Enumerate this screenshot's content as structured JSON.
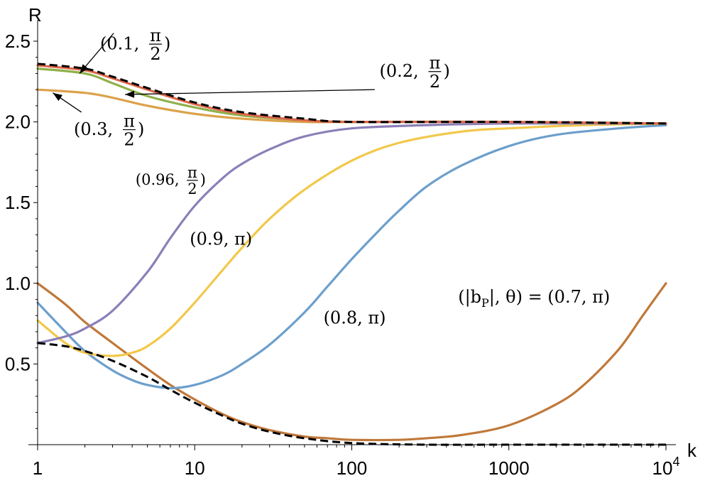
{
  "chart_data": {
    "type": "line",
    "title": "",
    "xlabel": "k",
    "ylabel": "R",
    "xscale": "log",
    "xlim": [
      0.9,
      11000
    ],
    "ylim": [
      0.0,
      2.55
    ],
    "grid": false,
    "x_ticks": [
      {
        "value": 1,
        "label": "1"
      },
      {
        "value": 10,
        "label": "10"
      },
      {
        "value": 100,
        "label": "100"
      },
      {
        "value": 1000,
        "label": "1000"
      },
      {
        "value": 10000,
        "label": "10",
        "sup": "4"
      }
    ],
    "y_ticks": [
      {
        "value": 0.5,
        "label": "0.5"
      },
      {
        "value": 1.0,
        "label": "1.0"
      },
      {
        "value": 1.5,
        "label": "1.5"
      },
      {
        "value": 2.0,
        "label": "2.0"
      },
      {
        "value": 2.5,
        "label": "2.5"
      }
    ],
    "series": [
      {
        "color": "#e0664a",
        "dashed": false,
        "points": [
          [
            1,
            2.35
          ],
          [
            2,
            2.32
          ],
          [
            3,
            2.27
          ],
          [
            5,
            2.2
          ],
          [
            10,
            2.11
          ],
          [
            20,
            2.05
          ],
          [
            50,
            2.01
          ],
          [
            100,
            2.0
          ],
          [
            1000,
            2.0
          ],
          [
            10000,
            1.99
          ]
        ]
      },
      {
        "color": "#8fb04a",
        "dashed": false,
        "points": [
          [
            1,
            2.33
          ],
          [
            2,
            2.3
          ],
          [
            3,
            2.24
          ],
          [
            5,
            2.16
          ],
          [
            10,
            2.09
          ],
          [
            20,
            2.04
          ],
          [
            50,
            2.01
          ],
          [
            100,
            2.0
          ],
          [
            1000,
            2.0
          ],
          [
            10000,
            1.99
          ]
        ]
      },
      {
        "color": "#dca24a",
        "dashed": false,
        "points": [
          [
            1,
            2.2
          ],
          [
            2,
            2.18
          ],
          [
            3,
            2.15
          ],
          [
            5,
            2.1
          ],
          [
            10,
            2.05
          ],
          [
            20,
            2.02
          ],
          [
            50,
            2.0
          ],
          [
            100,
            2.0
          ],
          [
            1000,
            2.0
          ],
          [
            10000,
            1.99
          ]
        ]
      },
      {
        "color": "#8b7fb8",
        "dashed": false,
        "points": [
          [
            1,
            0.63
          ],
          [
            1.5,
            0.67
          ],
          [
            2,
            0.72
          ],
          [
            3,
            0.83
          ],
          [
            5,
            1.07
          ],
          [
            7,
            1.28
          ],
          [
            10,
            1.48
          ],
          [
            15,
            1.65
          ],
          [
            20,
            1.74
          ],
          [
            30,
            1.83
          ],
          [
            50,
            1.91
          ],
          [
            100,
            1.96
          ],
          [
            300,
            1.98
          ],
          [
            1000,
            1.99
          ],
          [
            10000,
            1.99
          ]
        ]
      },
      {
        "color": "#f2c84a",
        "dashed": false,
        "points": [
          [
            1,
            0.77
          ],
          [
            1.5,
            0.63
          ],
          [
            2,
            0.57
          ],
          [
            3,
            0.55
          ],
          [
            4,
            0.57
          ],
          [
            5,
            0.61
          ],
          [
            7,
            0.72
          ],
          [
            10,
            0.88
          ],
          [
            15,
            1.08
          ],
          [
            20,
            1.22
          ],
          [
            30,
            1.4
          ],
          [
            50,
            1.58
          ],
          [
            100,
            1.76
          ],
          [
            200,
            1.87
          ],
          [
            500,
            1.94
          ],
          [
            1000,
            1.96
          ],
          [
            3000,
            1.98
          ],
          [
            10000,
            1.99
          ]
        ]
      },
      {
        "color": "#6c9fcc",
        "dashed": false,
        "points": [
          [
            1,
            0.88
          ],
          [
            1.5,
            0.7
          ],
          [
            2,
            0.58
          ],
          [
            3,
            0.46
          ],
          [
            4,
            0.4
          ],
          [
            5,
            0.37
          ],
          [
            7,
            0.35
          ],
          [
            10,
            0.37
          ],
          [
            15,
            0.43
          ],
          [
            20,
            0.5
          ],
          [
            30,
            0.62
          ],
          [
            50,
            0.82
          ],
          [
            70,
            0.98
          ],
          [
            100,
            1.15
          ],
          [
            150,
            1.33
          ],
          [
            200,
            1.45
          ],
          [
            300,
            1.6
          ],
          [
            500,
            1.73
          ],
          [
            1000,
            1.85
          ],
          [
            2000,
            1.92
          ],
          [
            5000,
            1.96
          ],
          [
            10000,
            1.98
          ]
        ]
      },
      {
        "color": "#c0783a",
        "dashed": false,
        "points": [
          [
            1,
            1.0
          ],
          [
            1.5,
            0.87
          ],
          [
            2,
            0.76
          ],
          [
            3,
            0.63
          ],
          [
            5,
            0.47
          ],
          [
            7,
            0.37
          ],
          [
            10,
            0.28
          ],
          [
            15,
            0.19
          ],
          [
            20,
            0.14
          ],
          [
            30,
            0.09
          ],
          [
            50,
            0.05
          ],
          [
            70,
            0.04
          ],
          [
            100,
            0.03
          ],
          [
            200,
            0.03
          ],
          [
            300,
            0.04
          ],
          [
            500,
            0.06
          ],
          [
            1000,
            0.12
          ],
          [
            2000,
            0.25
          ],
          [
            3000,
            0.37
          ],
          [
            5000,
            0.59
          ],
          [
            7000,
            0.79
          ],
          [
            10000,
            1.0
          ]
        ]
      },
      {
        "color": "#000000",
        "dashed": true,
        "points": [
          [
            1,
            2.36
          ],
          [
            2,
            2.33
          ],
          [
            3,
            2.28
          ],
          [
            5,
            2.21
          ],
          [
            10,
            2.12
          ],
          [
            20,
            2.06
          ],
          [
            50,
            2.02
          ],
          [
            100,
            2.0
          ],
          [
            1000,
            2.0
          ],
          [
            10000,
            1.99
          ]
        ]
      },
      {
        "color": "#000000",
        "dashed": true,
        "points": [
          [
            1,
            0.63
          ],
          [
            1.5,
            0.61
          ],
          [
            2,
            0.58
          ],
          [
            3,
            0.52
          ],
          [
            5,
            0.42
          ],
          [
            7,
            0.34
          ],
          [
            10,
            0.26
          ],
          [
            15,
            0.18
          ],
          [
            20,
            0.13
          ],
          [
            30,
            0.08
          ],
          [
            50,
            0.04
          ],
          [
            100,
            0.01
          ],
          [
            300,
            0.0
          ],
          [
            1000,
            0.0
          ],
          [
            10000,
            0.0
          ]
        ]
      }
    ],
    "annotations": [
      {
        "id": "a01",
        "head": "(0.1,",
        "num": "π",
        "den": "2",
        "tail": ")",
        "x": 2.5,
        "y": 2.45,
        "small": false
      },
      {
        "id": "a02",
        "head": "(0.2,",
        "num": "π",
        "den": "2",
        "tail": ")",
        "x": 150,
        "y": 2.28,
        "small": false
      },
      {
        "id": "a03",
        "head": "(0.3,",
        "num": "π",
        "den": "2",
        "tail": ")",
        "x": 1.7,
        "y": 1.92,
        "small": false
      },
      {
        "id": "a04",
        "head": "(0.96,",
        "num": "π",
        "den": "2",
        "tail": ")",
        "x": 4.2,
        "y": 1.61,
        "small": true
      },
      {
        "id": "a05",
        "text": "(0.9, π)",
        "x": 9.3,
        "y": 1.24
      },
      {
        "id": "a06",
        "text": "(0.8, π)",
        "x": 66,
        "y": 0.75
      },
      {
        "id": "a07",
        "text": "(|b",
        "sub": "P",
        "text2": "|, θ) = (0.7, π)",
        "x": 475,
        "y": 0.88
      }
    ],
    "arrows": [
      {
        "from": [
          3.05,
          2.55
        ],
        "to": [
          1.85,
          2.3
        ]
      },
      {
        "from": [
          140,
          2.2
        ],
        "to": [
          3.6,
          2.17
        ]
      },
      {
        "from": [
          1.9,
          2.06
        ],
        "to": [
          1.25,
          2.18
        ]
      }
    ]
  }
}
